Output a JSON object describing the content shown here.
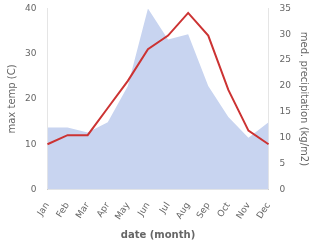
{
  "chart_data": {
    "type": "line",
    "categories": [
      "Jan",
      "Feb",
      "Mar",
      "Apr",
      "May",
      "Jun",
      "Jul",
      "Aug",
      "Sep",
      "Oct",
      "Nov",
      "Dec"
    ],
    "series": [
      {
        "type": "line",
        "color": "#cc3333",
        "values": [
          10,
          12,
          12,
          18,
          24,
          31,
          34,
          39,
          34,
          22,
          13,
          10
        ]
      },
      {
        "type": "area",
        "color": "#c8d4f0",
        "axis": "y2",
        "values": [
          12,
          12,
          11,
          13,
          20,
          35,
          29,
          30,
          20,
          14,
          10,
          13
        ]
      }
    ],
    "xlabel": "date (month)",
    "ylabel": "max temp (C)",
    "y2label": "med. precipitation (kg/m2)",
    "ylim": [
      0,
      40
    ],
    "yticks": [
      0,
      10,
      20,
      30,
      40
    ],
    "y2lim": [
      0,
      35
    ],
    "y2ticks": [
      0,
      5,
      10,
      15,
      20,
      25,
      30,
      35
    ],
    "grid": false
  }
}
